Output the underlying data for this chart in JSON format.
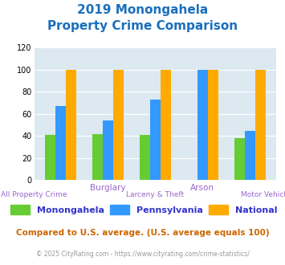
{
  "title_line1": "2019 Monongahela",
  "title_line2": "Property Crime Comparison",
  "title_color": "#1a6fbd",
  "cat_labels_top": [
    "",
    "Burglary",
    "",
    "Arson",
    ""
  ],
  "cat_labels_bottom": [
    "All Property Crime",
    "",
    "Larceny & Theft",
    "",
    "Motor Vehicle Theft"
  ],
  "values_monongahela": [
    41,
    42,
    41,
    0,
    38
  ],
  "values_pennsylvania": [
    67,
    54,
    73,
    100,
    45
  ],
  "values_national": [
    100,
    100,
    100,
    100,
    100
  ],
  "color_monongahela": "#66cc33",
  "color_pennsylvania": "#3399ff",
  "color_national": "#ffaa00",
  "bg_color": "#dce9f0",
  "ylim": [
    0,
    120
  ],
  "yticks": [
    0,
    20,
    40,
    60,
    80,
    100,
    120
  ],
  "legend_labels": [
    "Monongahela",
    "Pennsylvania",
    "National"
  ],
  "footnote1": "Compared to U.S. average. (U.S. average equals 100)",
  "footnote2": "© 2025 CityRating.com - https://www.cityrating.com/crime-statistics/",
  "footnote1_color": "#cc6600",
  "footnote2_color": "#999999",
  "footnote2_link_color": "#3399ff"
}
